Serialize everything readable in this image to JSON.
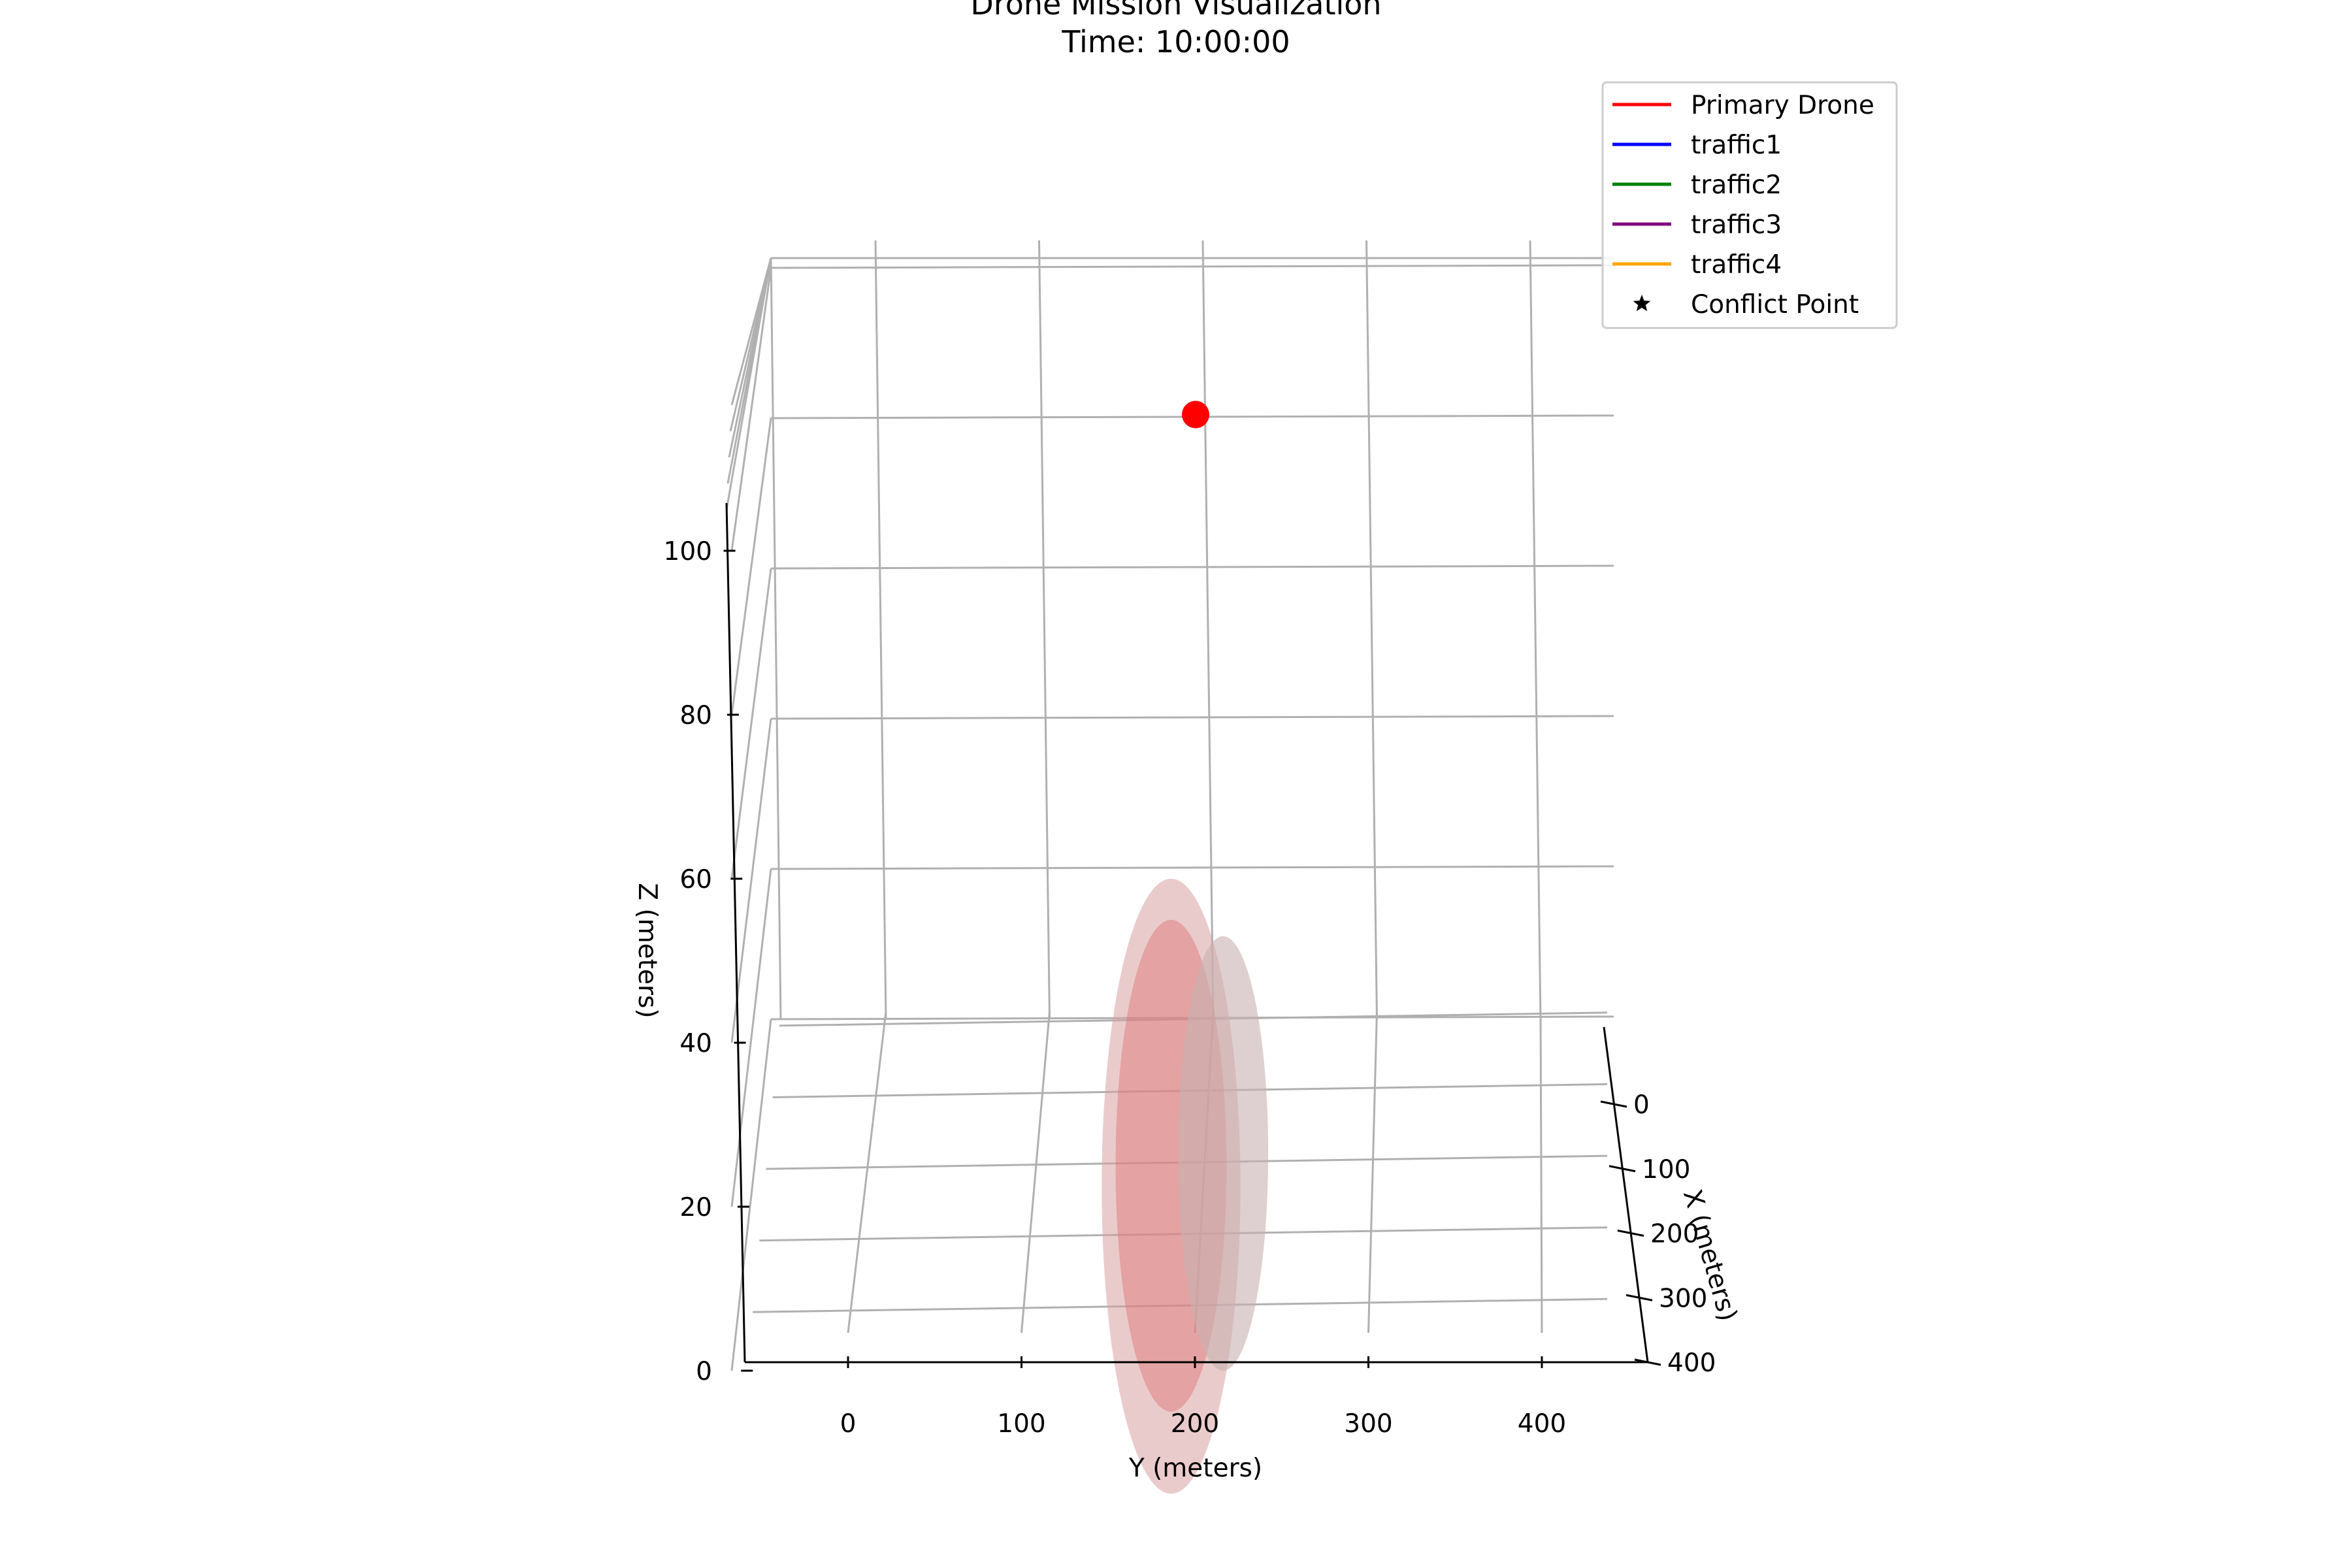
{
  "chart_data": {
    "type": "scatter",
    "projection": "3d",
    "title": "Drone Mission Visualization",
    "subtitle": "Time: 10:00:00",
    "xlabel": "X (meters)",
    "ylabel": "Y (meters)",
    "zlabel": "Z (meters)",
    "x_ticks": [
      0,
      100,
      200,
      300,
      400
    ],
    "y_ticks": [
      0,
      100,
      200,
      300,
      400
    ],
    "z_ticks": [
      0,
      20,
      40,
      60,
      80,
      100
    ],
    "xlim": [
      -70,
      420
    ],
    "ylim": [
      -60,
      450
    ],
    "zlim": [
      0,
      120
    ],
    "grid": true,
    "legend_position": "top-right",
    "legend": [
      {
        "label": "Primary Drone",
        "color": "#ff0000",
        "marker": "line"
      },
      {
        "label": "traffic1",
        "color": "#0000ff",
        "marker": "line"
      },
      {
        "label": "traffic2",
        "color": "#008000",
        "marker": "line"
      },
      {
        "label": "traffic3",
        "color": "#800080",
        "marker": "line"
      },
      {
        "label": "traffic4",
        "color": "#ffa500",
        "marker": "line"
      },
      {
        "label": "Conflict Point",
        "color": "#000000",
        "marker": "star"
      }
    ],
    "primary_drone_position": {
      "y": 200,
      "z": 85,
      "color": "#ff0000"
    },
    "safety_zones": [
      {
        "y": 190,
        "z_min": -15,
        "z_max": 60,
        "y_half_width": 40,
        "color": "#d9a0a0",
        "opacity": 0.55
      },
      {
        "y": 190,
        "z_min": -5,
        "z_max": 55,
        "y_half_width": 32,
        "color": "#e07070",
        "opacity": 0.45
      },
      {
        "y": 220,
        "z_min": 0,
        "z_max": 53,
        "y_half_width": 26,
        "color": "#c8b0b0",
        "opacity": 0.6
      }
    ],
    "colors": {
      "grid": "#b0b0b0",
      "axis": "#000000"
    }
  }
}
